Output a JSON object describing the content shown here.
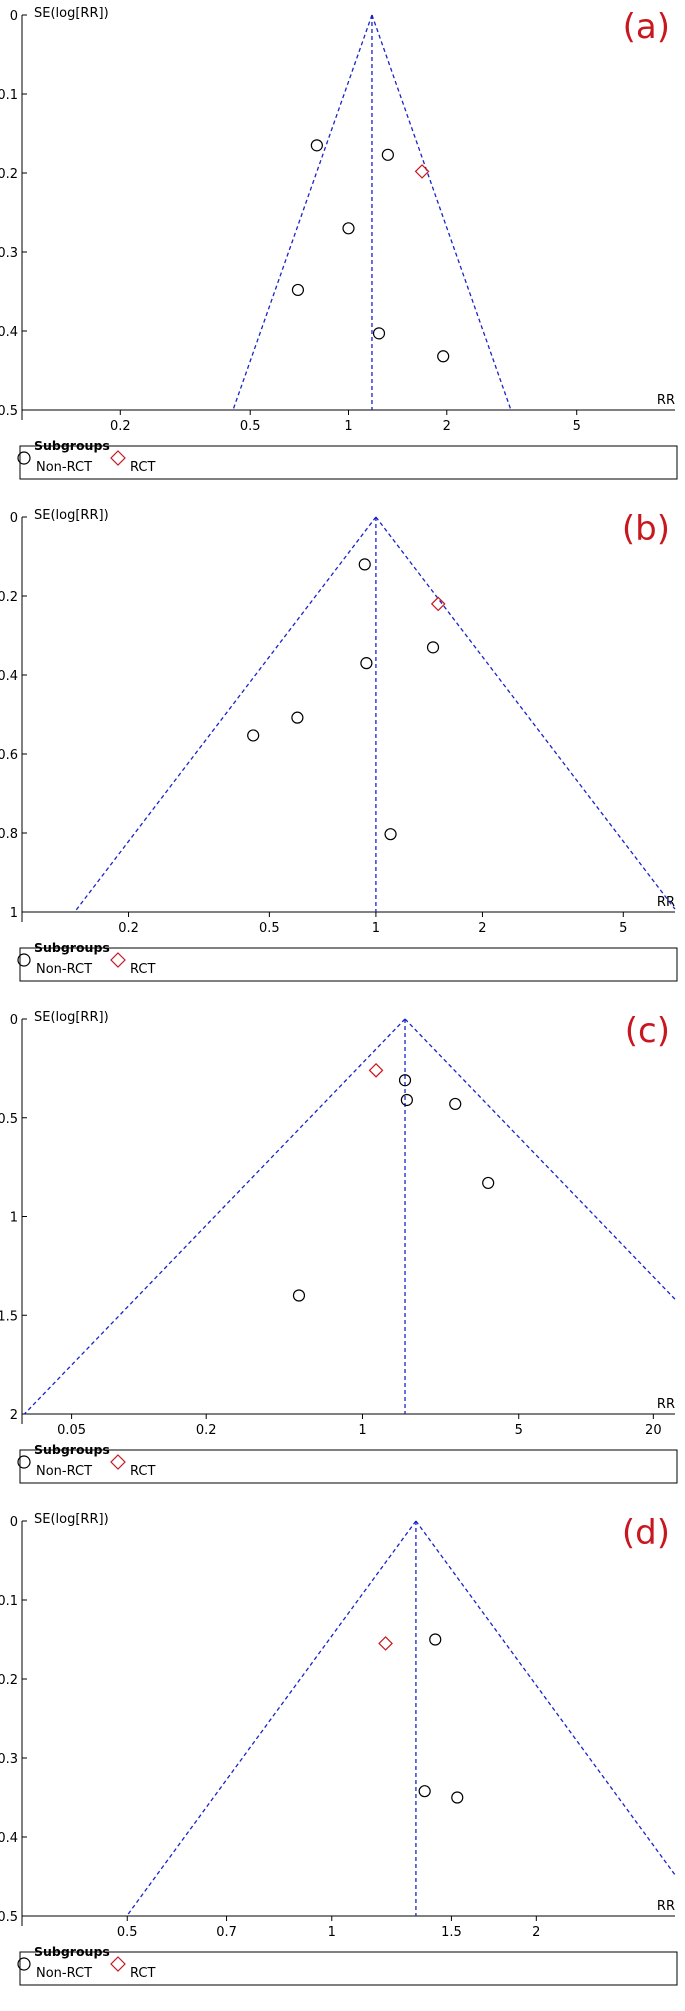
{
  "chart_data": [
    {
      "type": "scatter",
      "panel_label": "(a)",
      "ylabel": "SE(log[RR])",
      "xlabel": "RR",
      "x_scale": "log",
      "y_reversed": true,
      "xlim": [
        0.1,
        10
      ],
      "ylim": [
        0,
        0.5
      ],
      "x_ticks": [
        0.2,
        0.5,
        1,
        2,
        5
      ],
      "y_ticks": [
        0,
        0.1,
        0.2,
        0.3,
        0.4,
        0.5
      ],
      "pooled_rr": 1.18,
      "funnel_base_se": 0.5,
      "legend": {
        "title": "Subgroups",
        "items": [
          "Non-RCT",
          "RCT"
        ]
      },
      "series": [
        {
          "name": "Non-RCT",
          "marker": "circle",
          "points": [
            [
              0.8,
              0.165
            ],
            [
              1.32,
              0.177
            ],
            [
              1.0,
              0.27
            ],
            [
              0.7,
              0.348
            ],
            [
              1.24,
              0.403
            ],
            [
              1.95,
              0.432
            ]
          ]
        },
        {
          "name": "RCT",
          "marker": "diamond",
          "points": [
            [
              1.68,
              0.198
            ]
          ]
        }
      ]
    },
    {
      "type": "scatter",
      "panel_label": "(b)",
      "ylabel": "SE(log[RR])",
      "xlabel": "RR",
      "x_scale": "log",
      "y_reversed": true,
      "xlim": [
        0.1,
        7
      ],
      "ylim": [
        0,
        1
      ],
      "x_ticks": [
        0.2,
        0.5,
        1,
        2,
        5
      ],
      "y_ticks": [
        0,
        0.2,
        0.4,
        0.6,
        0.8,
        1
      ],
      "pooled_rr": 1.0,
      "funnel_base_se": 1,
      "legend": {
        "title": "Subgroups",
        "items": [
          "Non-RCT",
          "RCT"
        ]
      },
      "series": [
        {
          "name": "Non-RCT",
          "marker": "circle",
          "points": [
            [
              0.93,
              0.12
            ],
            [
              1.45,
              0.33
            ],
            [
              0.94,
              0.37
            ],
            [
              0.6,
              0.508
            ],
            [
              0.45,
              0.553
            ],
            [
              1.1,
              0.803
            ]
          ]
        },
        {
          "name": "RCT",
          "marker": "diamond",
          "points": [
            [
              1.5,
              0.22
            ]
          ]
        }
      ]
    },
    {
      "type": "scatter",
      "panel_label": "(c)",
      "ylabel": "SE(log[RR])",
      "xlabel": "RR",
      "x_scale": "log",
      "y_reversed": true,
      "xlim": [
        0.03,
        25
      ],
      "ylim": [
        0,
        2
      ],
      "x_ticks": [
        0.05,
        0.2,
        1,
        5,
        20
      ],
      "y_ticks": [
        0,
        0.5,
        1,
        1.5,
        2
      ],
      "pooled_rr": 1.55,
      "funnel_base_se": 2,
      "legend": {
        "title": "Subgroups",
        "items": [
          "Non-RCT",
          "RCT"
        ]
      },
      "series": [
        {
          "name": "Non-RCT",
          "marker": "circle",
          "points": [
            [
              1.55,
              0.31
            ],
            [
              1.58,
              0.41
            ],
            [
              2.6,
              0.43
            ],
            [
              3.65,
              0.83
            ],
            [
              0.52,
              1.4
            ]
          ]
        },
        {
          "name": "RCT",
          "marker": "diamond",
          "points": [
            [
              1.15,
              0.26
            ]
          ]
        }
      ]
    },
    {
      "type": "scatter",
      "panel_label": "(d)",
      "ylabel": "SE(log[RR])",
      "xlabel": "RR",
      "x_scale": "log",
      "y_reversed": true,
      "xlim": [
        0.35,
        3.2
      ],
      "ylim": [
        0,
        0.5
      ],
      "x_ticks": [
        0.5,
        0.7,
        1,
        1.5,
        2
      ],
      "y_ticks": [
        0,
        0.1,
        0.2,
        0.3,
        0.4,
        0.5
      ],
      "pooled_rr": 1.33,
      "funnel_base_se": 0.5,
      "legend": {
        "title": "Subgroups",
        "items": [
          "Non-RCT",
          "RCT"
        ]
      },
      "series": [
        {
          "name": "Non-RCT",
          "marker": "circle",
          "points": [
            [
              1.42,
              0.15
            ],
            [
              1.37,
              0.342
            ],
            [
              1.53,
              0.35
            ]
          ]
        },
        {
          "name": "RCT",
          "marker": "diamond",
          "points": [
            [
              1.2,
              0.155
            ]
          ]
        }
      ]
    }
  ]
}
